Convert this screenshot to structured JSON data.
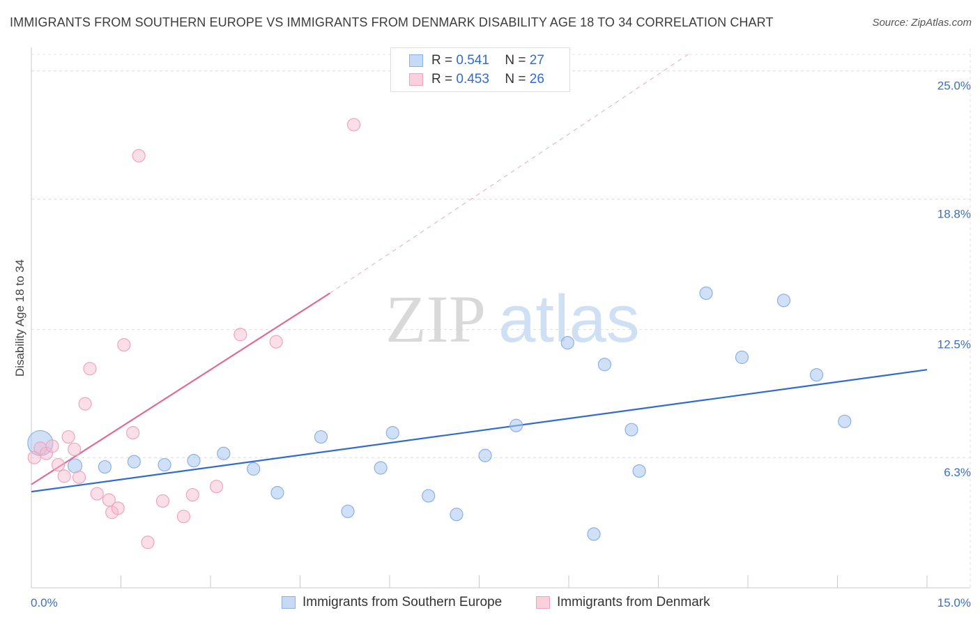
{
  "title": "IMMIGRANTS FROM SOUTHERN EUROPE VS IMMIGRANTS FROM DENMARK DISABILITY AGE 18 TO 34 CORRELATION CHART",
  "source": "Source: ZipAtlas.com",
  "watermark": {
    "zip": "ZIP",
    "atlas": "atlas"
  },
  "legend": {
    "blue": {
      "r_label": "R =",
      "r_value": "0.541",
      "n_label": "N =",
      "n_value": "27"
    },
    "pink": {
      "r_label": "R =",
      "r_value": "0.453",
      "n_label": "N =",
      "n_value": "26"
    }
  },
  "colors": {
    "blue": "#a9c8f0",
    "blue_line": "#2f6bd0",
    "pink": "#f6b8cb",
    "pink_line": "#e06a92",
    "tick_text": "#3a6fc4"
  },
  "chart_data": {
    "type": "scatter",
    "xlabel": "",
    "ylabel": "Disability Age 18 to 34",
    "xlim": [
      0,
      15
    ],
    "ylim": [
      0,
      25.8
    ],
    "x_tick_labels": [
      "0.0%",
      "15.0%"
    ],
    "y_ticks": [
      6.3,
      12.5,
      18.8,
      25.0
    ],
    "y_tick_labels": [
      "6.3%",
      "12.5%",
      "18.8%",
      "25.0%"
    ],
    "series": [
      {
        "name": "Immigrants from Southern Europe",
        "color": "#a9c8f0",
        "points": [
          [
            0.15,
            7.0,
            18
          ],
          [
            0.73,
            5.9,
            10
          ],
          [
            1.23,
            5.85,
            9
          ],
          [
            1.72,
            6.1,
            9
          ],
          [
            2.23,
            5.95,
            9
          ],
          [
            2.72,
            6.15,
            9
          ],
          [
            3.22,
            6.5,
            9
          ],
          [
            3.72,
            5.75,
            9
          ],
          [
            4.12,
            4.6,
            9
          ],
          [
            4.85,
            7.3,
            9
          ],
          [
            5.3,
            3.7,
            9
          ],
          [
            5.85,
            5.8,
            9
          ],
          [
            6.05,
            7.5,
            9
          ],
          [
            6.65,
            4.45,
            9
          ],
          [
            7.12,
            3.55,
            9
          ],
          [
            7.6,
            6.4,
            9
          ],
          [
            8.12,
            7.85,
            9
          ],
          [
            8.98,
            11.85,
            9
          ],
          [
            9.42,
            2.6,
            9
          ],
          [
            9.6,
            10.8,
            9
          ],
          [
            10.05,
            7.65,
            9
          ],
          [
            10.18,
            5.65,
            9
          ],
          [
            11.3,
            14.25,
            9
          ],
          [
            11.9,
            11.15,
            9
          ],
          [
            12.6,
            13.9,
            9
          ],
          [
            13.15,
            10.3,
            9
          ],
          [
            13.62,
            8.05,
            9
          ]
        ]
      },
      {
        "name": "Immigrants from Denmark",
        "color": "#f6b8cb",
        "points": [
          [
            0.05,
            6.3,
            9
          ],
          [
            0.15,
            6.75,
            9
          ],
          [
            0.25,
            6.5,
            9
          ],
          [
            0.35,
            6.85,
            9
          ],
          [
            0.45,
            5.95,
            9
          ],
          [
            0.55,
            5.4,
            9
          ],
          [
            0.62,
            7.3,
            9
          ],
          [
            0.72,
            6.7,
            9
          ],
          [
            0.8,
            5.35,
            9
          ],
          [
            0.9,
            8.9,
            9
          ],
          [
            0.98,
            10.6,
            9
          ],
          [
            1.1,
            4.55,
            9
          ],
          [
            1.3,
            4.25,
            9
          ],
          [
            1.35,
            3.65,
            9
          ],
          [
            1.45,
            3.85,
            9
          ],
          [
            1.55,
            11.75,
            9
          ],
          [
            1.7,
            7.5,
            9
          ],
          [
            1.8,
            20.9,
            9
          ],
          [
            1.95,
            2.2,
            9
          ],
          [
            2.2,
            4.2,
            9
          ],
          [
            2.55,
            3.45,
            9
          ],
          [
            2.7,
            4.5,
            9
          ],
          [
            3.1,
            4.9,
            9
          ],
          [
            3.5,
            12.25,
            9
          ],
          [
            4.1,
            11.9,
            9
          ],
          [
            5.4,
            22.4,
            9
          ]
        ]
      }
    ],
    "trend_lines": [
      {
        "series": "Immigrants from Southern Europe",
        "x": [
          0,
          15
        ],
        "y": [
          4.65,
          10.55
        ]
      },
      {
        "series": "Immigrants from Denmark",
        "x": [
          0,
          5.0
        ],
        "y": [
          5.0,
          14.25
        ],
        "dashed_extension_to": [
          11.0,
          25.8
        ]
      }
    ]
  },
  "bottom_legend": [
    "Immigrants from Southern Europe",
    "Immigrants from Denmark"
  ]
}
